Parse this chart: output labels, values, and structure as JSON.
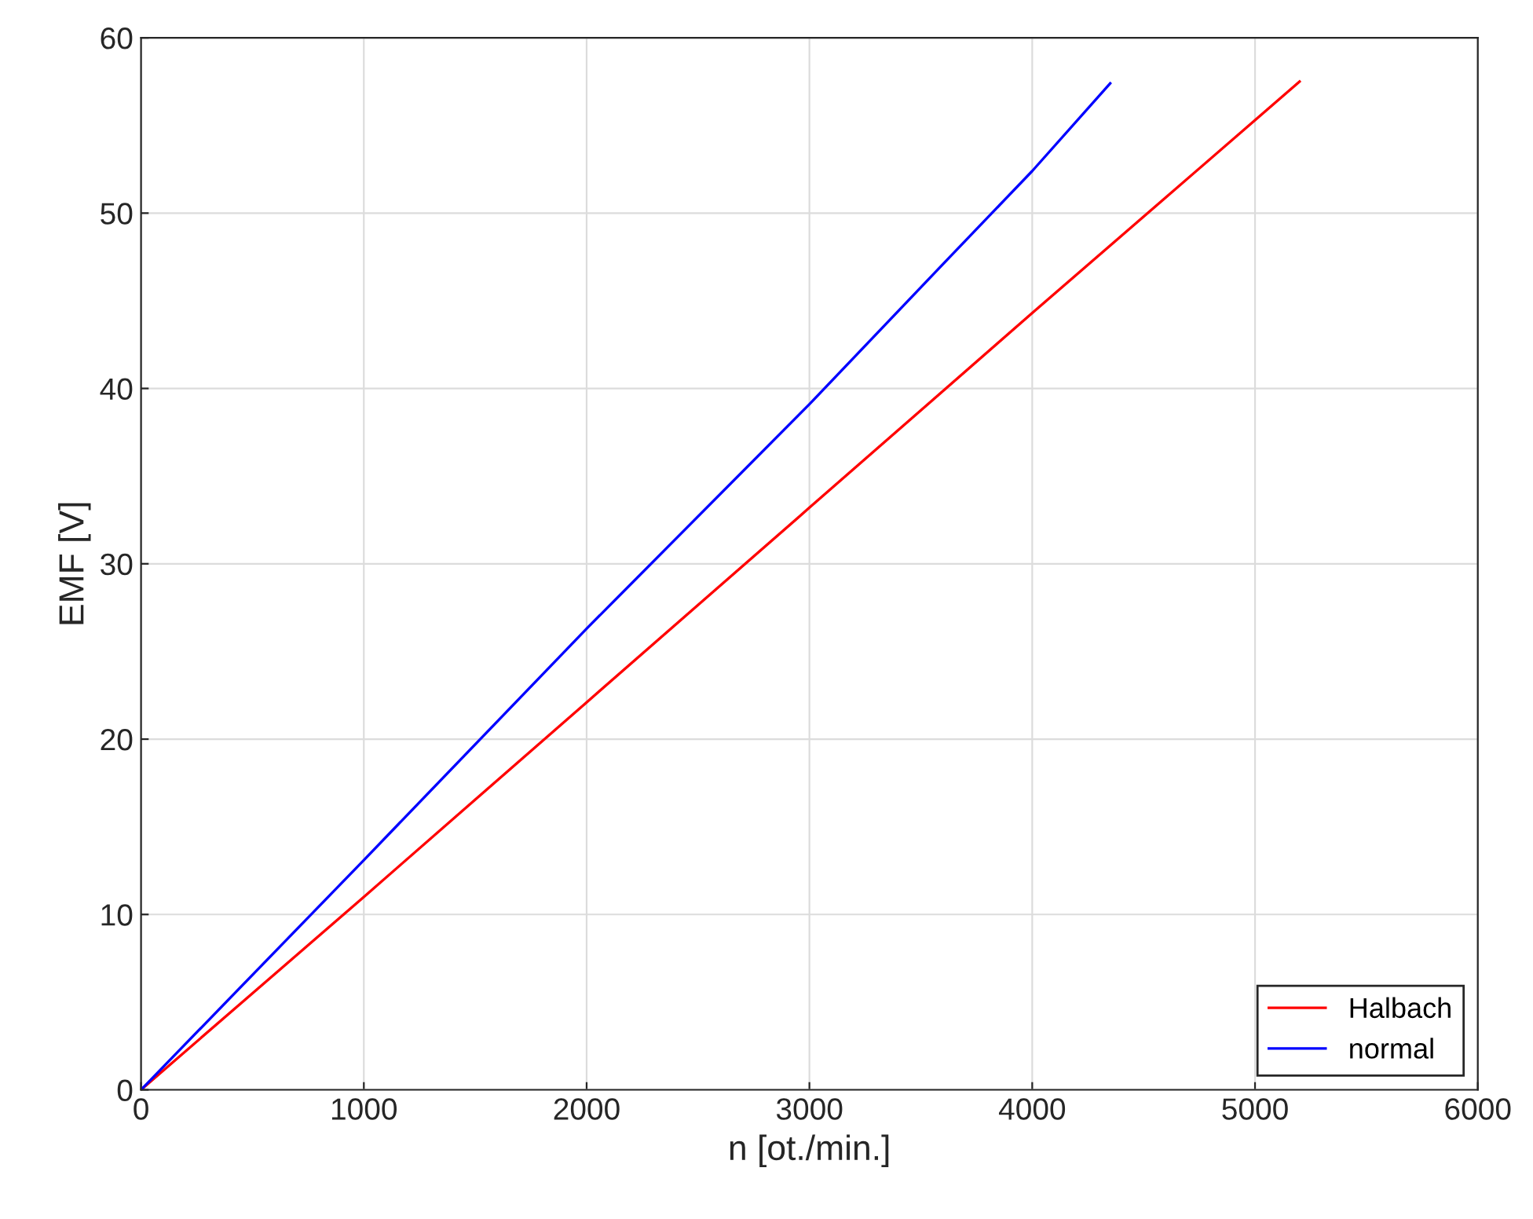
{
  "chart_data": {
    "type": "line",
    "xlabel": "n [ot./min.]",
    "ylabel": "EMF [V]",
    "series": [
      {
        "name": "Halbach",
        "color": "#ff0000",
        "x": [
          0,
          1000,
          2000,
          3000,
          4000,
          5000,
          5200
        ],
        "values": [
          0,
          11.0,
          22.1,
          33.2,
          44.3,
          55.3,
          57.5
        ]
      },
      {
        "name": "normal",
        "color": "#0000ff",
        "x": [
          0,
          1000,
          2000,
          3000,
          3600,
          4000,
          4350
        ],
        "values": [
          0,
          13.1,
          26.3,
          39.1,
          47.1,
          52.4,
          57.4
        ]
      }
    ],
    "xlim": [
      0,
      6000
    ],
    "xticks": [
      0,
      1000,
      2000,
      3000,
      4000,
      5000,
      6000
    ],
    "ylim": [
      0,
      60
    ],
    "yticks": [
      0,
      10,
      20,
      30,
      40,
      50,
      60
    ],
    "grid": true,
    "legend": "bottom right",
    "marker": "none",
    "line_style": "solid"
  }
}
